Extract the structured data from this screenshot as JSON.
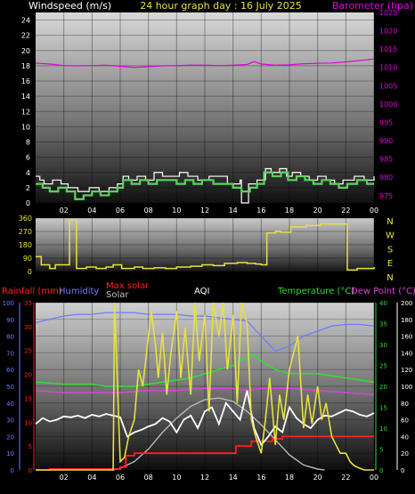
{
  "colors": {
    "background": "#000000",
    "wind_speed": "#5bd45b",
    "wind_gust": "#ffffff",
    "barometer": "#e000e0",
    "wind_direction": "#e8e040",
    "rainfall": "#ff2020",
    "humidity": "#6f7cff",
    "max_solar": "#c0c0c0",
    "solar": "#e8e040",
    "aqi": "#ffffff",
    "temperature": "#33dd33",
    "dew_point": "#e040e0",
    "title": "#e8e040"
  },
  "header": {
    "left_label": "Windspeed (m/s)",
    "title": "24 hour graph day : 16 July 2025",
    "right_label": "Barometer (hpa)"
  },
  "lower_header": {
    "rainfall": "Rainfall (mm)",
    "humidity": "Humidity",
    "max_solar": "Max solar",
    "solar": "Solar",
    "aqi": "AQI",
    "temperature": "Temperature (°C)",
    "dew_point": "Dew Point (°C)"
  },
  "chart_data": [
    {
      "type": "line",
      "id": "wind-baro",
      "x_ticks": [
        "02",
        "04",
        "06",
        "08",
        "10",
        "12",
        "14",
        "16",
        "18",
        "20",
        "22",
        "00"
      ],
      "xlim": [
        0,
        24
      ],
      "y_left": {
        "label": "Windspeed (m/s)",
        "ylim": [
          0,
          25
        ],
        "ticks": [
          0,
          2,
          4,
          6,
          8,
          10,
          12,
          14,
          16,
          18,
          20,
          22,
          24
        ]
      },
      "y_right": {
        "label": "Barometer (hpa)",
        "ylim": [
          973,
          1025
        ],
        "ticks": [
          975,
          980,
          985,
          990,
          995,
          1000,
          1005,
          1010,
          1015,
          1020,
          1025
        ]
      },
      "series": [
        {
          "key": "wind_gust",
          "axis": "left",
          "step": true,
          "x": [
            0,
            0.3,
            0.6,
            1.2,
            1.8,
            2.3,
            3.0,
            3.8,
            4.5,
            5.2,
            5.8,
            6.2,
            6.6,
            7.2,
            7.8,
            8.4,
            9.0,
            10.2,
            10.8,
            11.5,
            12.3,
            13.0,
            13.6,
            14.2,
            14.5,
            14.6,
            15.1,
            15.7,
            16.3,
            16.7,
            17.3,
            17.8,
            18.2,
            18.8,
            19.4,
            20.0,
            20.6,
            21.2,
            21.8,
            22.6,
            23.3,
            24
          ],
          "values": [
            3.5,
            3.0,
            2.5,
            3.0,
            2.5,
            2.0,
            1.5,
            2.0,
            1.5,
            2.0,
            2.5,
            3.5,
            3.0,
            3.5,
            3.0,
            4.0,
            3.5,
            4.0,
            3.5,
            3.0,
            3.5,
            3.5,
            2.5,
            2.5,
            3.0,
            0.0,
            2.5,
            3.0,
            4.5,
            4.0,
            4.5,
            3.5,
            4.0,
            3.5,
            3.0,
            3.5,
            3.0,
            2.5,
            3.0,
            3.5,
            3.0,
            3.5
          ]
        },
        {
          "key": "wind_speed",
          "axis": "left",
          "step": true,
          "x": [
            0,
            0.5,
            1.0,
            1.6,
            2.2,
            2.8,
            3.4,
            4.0,
            4.6,
            5.2,
            5.8,
            6.2,
            6.8,
            7.4,
            8.0,
            8.6,
            9.2,
            10.0,
            10.6,
            11.2,
            11.8,
            12.6,
            13.3,
            14.0,
            14.6,
            15.2,
            15.7,
            16.2,
            16.8,
            17.4,
            17.9,
            18.5,
            19.1,
            19.7,
            20.3,
            20.9,
            21.5,
            22.1,
            22.8,
            23.5,
            24
          ],
          "values": [
            2.5,
            2.0,
            1.5,
            2.0,
            1.5,
            0.5,
            1.0,
            1.5,
            1.0,
            1.5,
            2.0,
            3.0,
            2.5,
            3.0,
            2.5,
            3.0,
            3.0,
            2.5,
            3.0,
            2.5,
            3.0,
            2.5,
            2.5,
            2.0,
            1.5,
            2.0,
            2.5,
            4.0,
            3.5,
            4.0,
            3.0,
            3.5,
            3.0,
            2.5,
            3.0,
            2.5,
            2.0,
            2.5,
            3.0,
            2.5,
            2.5
          ]
        },
        {
          "key": "barometer",
          "axis": "right",
          "x": [
            0,
            1,
            2,
            3,
            4,
            5,
            6,
            7,
            8,
            9,
            10,
            11,
            12,
            13,
            14,
            15,
            15.5,
            16,
            17,
            18,
            19,
            20,
            21,
            22,
            23,
            24
          ],
          "values": [
            1011.2,
            1010.9,
            1010.5,
            1010.4,
            1010.5,
            1010.6,
            1010.3,
            1010.0,
            1010.2,
            1010.4,
            1010.5,
            1010.6,
            1010.6,
            1010.5,
            1010.6,
            1010.8,
            1011.6,
            1010.9,
            1010.6,
            1010.7,
            1011.0,
            1011.1,
            1011.2,
            1011.5,
            1011.9,
            1012.3
          ]
        }
      ]
    },
    {
      "type": "line",
      "id": "wind-direction",
      "x_ticks": [
        "02",
        "04",
        "06",
        "08",
        "10",
        "12",
        "14",
        "16",
        "18",
        "20",
        "22",
        "00"
      ],
      "xlim": [
        0,
        24
      ],
      "y_left": {
        "ylim": [
          0,
          360
        ],
        "ticks": [
          0,
          90,
          180,
          270,
          360
        ]
      },
      "y_right_labels": [
        "N",
        "W",
        "S",
        "E",
        "N"
      ],
      "series": [
        {
          "key": "wind_direction",
          "step": true,
          "x": [
            0,
            0.4,
            1.0,
            1.4,
            2.4,
            2.9,
            3.6,
            4.3,
            5.0,
            5.5,
            6.1,
            7.0,
            7.6,
            8.4,
            9.2,
            10.0,
            11.0,
            11.8,
            12.6,
            13.4,
            14.3,
            15.0,
            15.6,
            16.0,
            16.4,
            17.0,
            17.4,
            18.1,
            19.2,
            20.2,
            21.5,
            22.1,
            22.8,
            24
          ],
          "values": [
            100,
            45,
            20,
            45,
            350,
            20,
            30,
            20,
            30,
            45,
            20,
            30,
            20,
            25,
            20,
            30,
            35,
            45,
            40,
            55,
            60,
            55,
            50,
            45,
            260,
            270,
            265,
            300,
            310,
            320,
            320,
            10,
            20,
            30
          ]
        }
      ]
    },
    {
      "type": "line",
      "id": "solar-temp",
      "x_ticks": [
        "02",
        "04",
        "06",
        "08",
        "10",
        "12",
        "14",
        "16",
        "18",
        "20",
        "22",
        "00"
      ],
      "xlim": [
        0,
        24
      ],
      "axes": [
        {
          "side": "left-outer",
          "label": "Humidity",
          "ylim": [
            0,
            100
          ],
          "ticks": [
            0,
            10,
            20,
            30,
            40,
            50,
            60,
            70,
            80,
            90,
            100
          ]
        },
        {
          "side": "left-inner",
          "label": "Rainfall (mm)",
          "ylim": [
            0,
            35
          ],
          "ticks": [
            0,
            5,
            10,
            15,
            20,
            25,
            30,
            35
          ]
        },
        {
          "side": "right-inner",
          "label": "Temperature (°C)",
          "ylim": [
            0,
            40
          ],
          "ticks": [
            0,
            5,
            10,
            15,
            20,
            25,
            30,
            35,
            40
          ]
        },
        {
          "side": "right-outer",
          "label": "Solar",
          "ylim": [
            0,
            200
          ],
          "ticks": [
            0,
            20,
            40,
            60,
            80,
            100,
            120,
            140,
            160,
            180,
            200
          ]
        }
      ],
      "series": [
        {
          "key": "humidity",
          "axis": "left-outer",
          "x": [
            0,
            1,
            2,
            3,
            4,
            5,
            6,
            7,
            8,
            9,
            10,
            11,
            12,
            13,
            14,
            15,
            16,
            17,
            18,
            19,
            20,
            21,
            22,
            23,
            24
          ],
          "values": [
            88,
            90,
            92,
            93,
            93,
            94,
            94,
            94,
            93,
            93,
            93,
            92,
            92,
            91,
            90,
            89,
            80,
            71,
            74,
            80,
            83,
            86,
            87,
            87,
            86
          ]
        },
        {
          "key": "temperature",
          "axis": "right-inner",
          "x": [
            0,
            2,
            4,
            5,
            6,
            7,
            8,
            9,
            10,
            11,
            12,
            13,
            14,
            15,
            15.5,
            16,
            17,
            18,
            19,
            20,
            21,
            22,
            23,
            24
          ],
          "values": [
            21,
            20.5,
            20.5,
            20,
            20,
            20,
            20.5,
            21,
            21.5,
            22,
            23,
            24,
            25,
            27,
            27.5,
            26,
            24,
            23,
            23,
            23,
            22.5,
            22,
            21.5,
            21
          ]
        },
        {
          "key": "dew_point",
          "axis": "right-inner",
          "x": [
            0,
            2,
            4,
            6,
            8,
            10,
            12,
            14,
            15,
            16,
            17,
            18,
            20,
            22,
            24
          ],
          "values": [
            19,
            18.5,
            18.5,
            18.5,
            19,
            19,
            19.5,
            19.5,
            19,
            19.5,
            19.5,
            19.5,
            19,
            18.5,
            18
          ]
        },
        {
          "key": "max_solar",
          "axis": "right-outer",
          "x": [
            5.5,
            6,
            7,
            8,
            9,
            10,
            11,
            12,
            13,
            14,
            15,
            16,
            17,
            18,
            19,
            20,
            20.5
          ],
          "values": [
            0,
            2,
            10,
            25,
            45,
            62,
            76,
            84,
            86,
            82,
            70,
            54,
            36,
            18,
            6,
            1,
            0
          ]
        },
        {
          "key": "rainfall",
          "axis": "left-inner",
          "step": true,
          "x": [
            0,
            1,
            6,
            6.4,
            7,
            14,
            14.2,
            15.3,
            16.8,
            17.5,
            22.5,
            23.5,
            23.7,
            24
          ],
          "values": [
            0,
            0.2,
            0.6,
            3,
            3.5,
            3.5,
            5,
            6,
            6.5,
            7,
            7,
            7,
            7,
            7
          ]
        },
        {
          "key": "aqi",
          "axis": "right-outer",
          "x": [
            0,
            0.5,
            1,
            1.5,
            2,
            2.5,
            3,
            3.5,
            4,
            4.5,
            5,
            5.5,
            6,
            6.5,
            7,
            7.5,
            8,
            8.5,
            9,
            9.5,
            10,
            10.5,
            11,
            11.5,
            12,
            12.5,
            13,
            13.5,
            14,
            14.5,
            15,
            15.5,
            16,
            16.5,
            17,
            17.5,
            18,
            18.5,
            19,
            19.5,
            20,
            20.5,
            21,
            21.5,
            22,
            22.5,
            23,
            23.5,
            24
          ],
          "values": [
            55,
            62,
            58,
            60,
            64,
            63,
            65,
            62,
            66,
            64,
            67,
            65,
            63,
            40,
            45,
            48,
            52,
            55,
            62,
            58,
            45,
            60,
            65,
            50,
            70,
            75,
            55,
            80,
            70,
            60,
            95,
            50,
            30,
            40,
            52,
            45,
            75,
            62,
            55,
            50,
            60,
            65,
            64,
            68,
            72,
            70,
            66,
            64,
            68
          ]
        },
        {
          "key": "solar",
          "axis": "right-outer",
          "x": [
            0,
            5.5,
            5.6,
            6,
            6.3,
            6.6,
            7,
            7.3,
            7.6,
            8,
            8.2,
            8.5,
            8.7,
            9,
            9.3,
            9.6,
            10,
            10.3,
            10.6,
            11,
            11.3,
            11.6,
            12,
            12.3,
            12.6,
            13,
            13.3,
            13.6,
            14,
            14.3,
            14.6,
            15,
            15.3,
            15.6,
            16,
            16.3,
            16.6,
            17,
            17.3,
            17.6,
            18,
            18.3,
            18.6,
            19,
            19.3,
            19.6,
            20,
            20.3,
            20.6,
            21,
            21.3,
            21.6,
            22,
            22.3,
            22.6,
            23,
            23.3,
            23.6,
            24
          ],
          "values": [
            0,
            0,
            200,
            10,
            15,
            40,
            60,
            120,
            100,
            160,
            190,
            150,
            110,
            165,
            90,
            140,
            190,
            110,
            170,
            90,
            200,
            130,
            185,
            70,
            200,
            160,
            200,
            120,
            185,
            80,
            200,
            175,
            60,
            40,
            20,
            60,
            110,
            30,
            90,
            60,
            120,
            140,
            160,
            50,
            90,
            55,
            100,
            60,
            80,
            40,
            30,
            20,
            20,
            10,
            5,
            2,
            0,
            0,
            0
          ]
        }
      ]
    }
  ]
}
